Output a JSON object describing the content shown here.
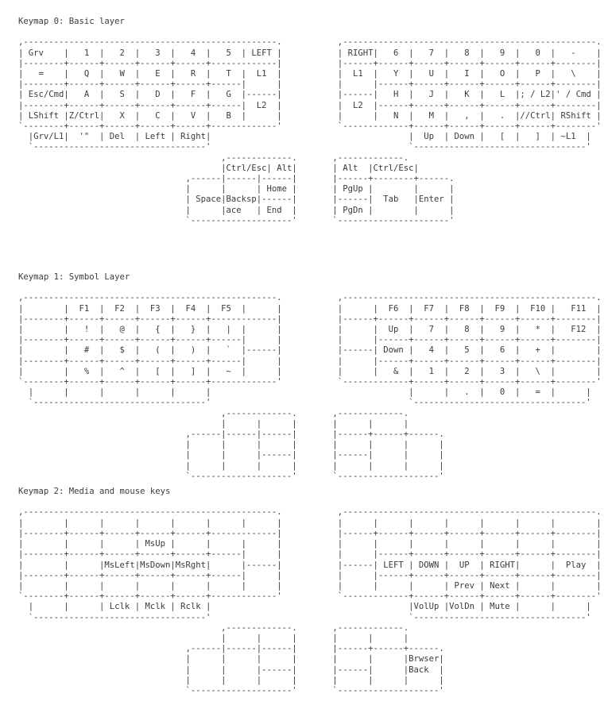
{
  "page": {
    "background_color": "#ffffff",
    "text_color": "#3b3b3f",
    "document_type": "keymap-ascii-documentation"
  },
  "keymaps": [
    {
      "heading": "Keymap 0: Basic layer",
      "art": [
        ",--------------------------------------------------.           ,--------------------------------------------------.",
        "| Grv    |   1  |   2  |   3  |   4  |   5  | LEFT |           | RIGHT|   6  |   7  |   8  |   9  |   0  |   -    |",
        "|--------+------+------+------+------+-------------|           |------+------+------+------+------+------+--------|",
        "|   =    |   Q  |   W  |   E  |   R  |   T  |  L1  |           |  L1  |   Y  |   U  |   I  |   O  |   P  |   \\    |",
        "|--------+------+------+------+------+------|      |           |      |------+------+------+------+------+--------|",
        "| Esc/Cmd|   A  |   S  |   D  |   F  |   G  |------|           |------|   H  |   J  |   K  |   L  |; / L2|' / Cmd |",
        "|--------+------+------+------+------+------|  L2  |           |  L2  |------+------+------+------+------+--------|",
        "| LShift |Z/Ctrl|   X  |   C  |   V  |   B  |      |           |      |   N  |   M  |   ,  |   .  |//Ctrl| RShift |",
        "`--------+------+------+------+------+-------------'           `-------------+------+------+------+------+--------'",
        "  |Grv/L1|  '\"  | Del  | Left | Right|                                       |  Up  | Down |   [  |   ]  | ~L1  |",
        "  `----------------------------------'                                       `----------------------------------'",
        "                                        ,-------------.       ,-------------.",
        "                                        |Ctrl/Esc| Alt|       | Alt  |Ctrl/Esc|",
        "                                 ,------|------|------|       |------+--------+------.",
        "                                 |      |      | Home |       | PgUp |        |      |",
        "                                 | Space|Backsp|------|       |------|  Tab   |Enter |",
        "                                 |      |ace   | End  |       | PgDn |        |      |",
        "                                 `--------------------'       `----------------------'"
      ]
    },
    {
      "heading": "Keymap 1: Symbol Layer",
      "art": [
        ",--------------------------------------------------.           ,--------------------------------------------------.",
        "|        |  F1  |  F2  |  F3  |  F4  |  F5  |      |           |      |  F6  |  F7  |  F8  |  F9  |  F10 |   F11  |",
        "|--------+------+------+------+------+-------------|           |------+------+------+------+------+------+--------|",
        "|        |   !  |   @  |   {  |   }  |   |  |      |           |      |  Up  |   7  |   8  |   9  |   *  |   F12  |",
        "|--------+------+------+------+------+------|      |           |      |------+------+------+------+------+--------|",
        "|        |   #  |   $  |   (  |   )  |   `  |------|           |------| Down |   4  |   5  |   6  |   +  |        |",
        "|--------+------+------+------+------+------|      |           |      |------+------+------+------+------+--------|",
        "|        |   %  |   ^  |   [  |   ]  |   ~  |      |           |      |   &  |   1  |   2  |   3  |   \\  |        |",
        "`--------+------+------+------+------+-------------'           `-------------+------+------+------+------+--------'",
        "  |      |      |      |      |      |                                       |      |   .  |   0  |   =  |      |",
        "  `----------------------------------'                                       `----------------------------------'",
        "                                        ,-------------.       ,-------------.",
        "                                        |      |      |       |      |      |",
        "                                 ,------|------|------|       |------+------+------.",
        "                                 |      |      |      |       |      |      |      |",
        "                                 |      |      |------|       |------|      |      |",
        "                                 |      |      |      |       |      |      |      |",
        "                                 `--------------------'       `--------------------'"
      ]
    },
    {
      "heading": "Keymap 2: Media and mouse keys",
      "art": [
        ",--------------------------------------------------.           ,--------------------------------------------------.",
        "|        |      |      |      |      |      |      |           |      |      |      |      |      |      |        |",
        "|--------+------+------+------+------+-------------|           |------+------+------+------+------+------+--------|",
        "|        |      |      | MsUp |      |      |      |           |      |      |      |      |      |      |        |",
        "|--------+------+------+------+------+------|      |           |      |------+------+------+------+------+--------|",
        "|        |      |MsLeft|MsDown|MsRght|      |------|           |------| LEFT | DOWN |  UP  | RIGHT|      |  Play  |",
        "|--------+------+------+------+------+------|      |           |      |------+------+------+------+------+--------|",
        "|        |      |      |      |      |      |      |           |      |      |      | Prev | Next |      |        |",
        "`--------+------+------+------+------+-------------'           `-------------+------+------+------+------+--------'",
        "  |      |      | Lclk | Mclk | Rclk |                                       |VolUp |VolDn | Mute |      |      |",
        "  `----------------------------------'                                       `----------------------------------'",
        "                                        ,-------------.       ,-------------.",
        "                                        |      |      |       |      |      |",
        "                                 ,------|------|------|       |------+------+------.",
        "                                 |      |      |      |       |      |      |Brwser|",
        "                                 |      |      |------|       |------|      |Back  |",
        "                                 |      |      |      |       |      |      |      |",
        "                                 `--------------------'       `--------------------'"
      ]
    }
  ]
}
